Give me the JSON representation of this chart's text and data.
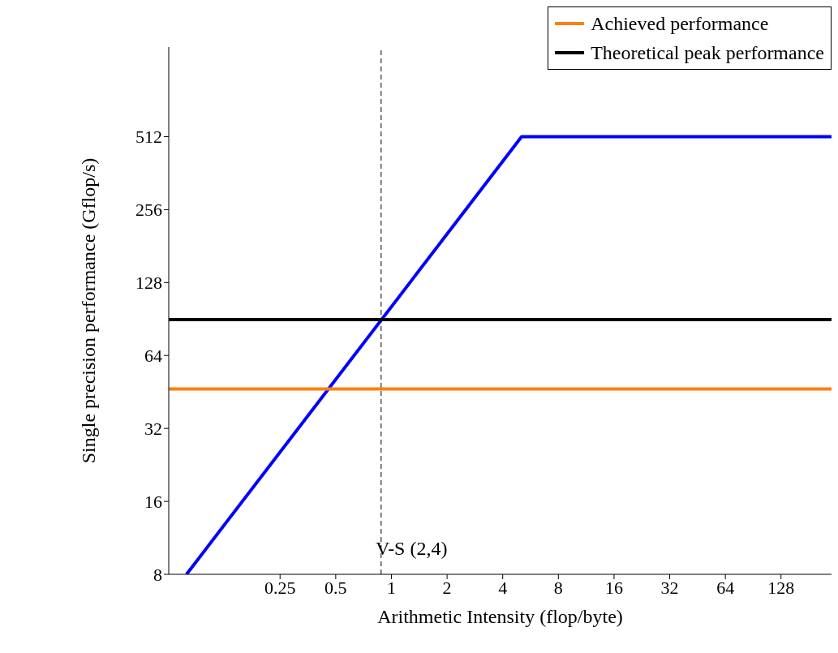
{
  "chart_data": {
    "type": "line",
    "xlabel": "Arithmetic Intensity (flop/byte)",
    "ylabel": "Single precision performance (Gflop/s)",
    "log": "xy",
    "xlim": [
      0.0625,
      240
    ],
    "ylim": [
      8,
      1200
    ],
    "xticks": [
      0.25,
      0.5,
      1,
      2,
      4,
      8,
      16,
      32,
      64,
      128
    ],
    "yticks": [
      8,
      16,
      32,
      64,
      128,
      256,
      512
    ],
    "legend": "top right",
    "marker": "none",
    "line_style": "solid",
    "series": [
      {
        "color": "#0000ff",
        "x": [
          0.078,
          5.06,
          240
        ],
        "values": [
          8,
          512,
          512
        ]
      },
      {
        "name": "Achieved performance",
        "color": "#ff7f0e",
        "x": [
          0.0625,
          240
        ],
        "values": [
          46.6,
          46.6
        ]
      },
      {
        "name": "Theoretical peak performance",
        "color": "#000000",
        "x": [
          0.0625,
          240
        ],
        "values": [
          90,
          90
        ]
      }
    ],
    "ref_lines": [
      {
        "axis": "x",
        "value": 0.88,
        "line_style": "dashed",
        "color": "#000000"
      }
    ],
    "annotations": [
      "V-S (2,4)"
    ]
  }
}
